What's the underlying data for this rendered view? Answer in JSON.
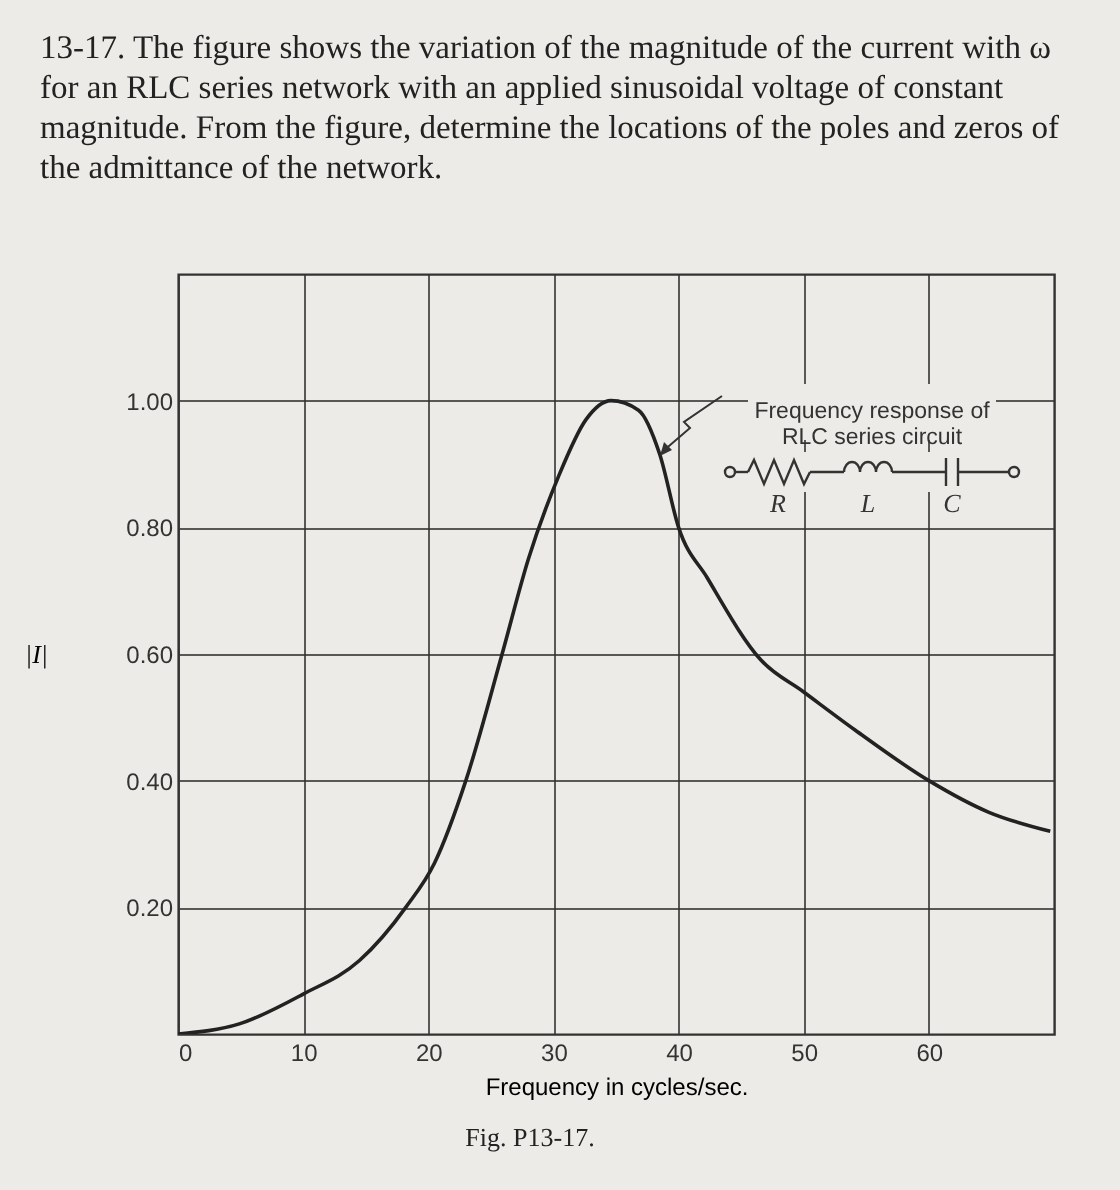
{
  "chart_data": {
    "type": "line",
    "title": "13-17. The figure shows the variation of the magnitude of the current with ω for an RLC series network with an applied sinusoidal voltage of constant magnitude. From the figure, determine the locations of the poles and zeros of the admittance of the network.",
    "xlabel": "Frequency in cycles/sec.",
    "ylabel": "|I|",
    "x": [
      0,
      4.9,
      10,
      14.5,
      18.2,
      20.5,
      23,
      25.9,
      28,
      30.4,
      32.6,
      34.6,
      36.8,
      38.5,
      40,
      42.3,
      46.6,
      50,
      54.1,
      60,
      64.8,
      69.7
    ],
    "series": [
      {
        "color": "#222222",
        "values": [
          0,
          0.016,
          0.063,
          0.116,
          0.2,
          0.27,
          0.4,
          0.6,
          0.75,
          0.88,
          0.97,
          1.0,
          0.985,
          0.915,
          0.8,
          0.72,
          0.59,
          0.54,
          0.48,
          0.4,
          0.35,
          0.32
        ]
      }
    ],
    "xlim": [
      0,
      70
    ],
    "ylim": [
      0,
      1.2
    ],
    "xticks": [
      0,
      10,
      20,
      30,
      40,
      50,
      60
    ],
    "yticks": [
      {
        "value": 0.2,
        "label": "0.20"
      },
      {
        "value": 0.4,
        "label": "0.40"
      },
      {
        "value": 0.6,
        "label": "0.60"
      },
      {
        "value": 0.8,
        "label": "0.80"
      },
      {
        "value": 1.0,
        "label": "1.00"
      }
    ],
    "grid": true,
    "marker": "none",
    "line_style": "solid",
    "annotations": [
      "R",
      "L",
      "C",
      "Fig. P13-17.",
      "Frequency response of\nRLC series circuit"
    ]
  }
}
